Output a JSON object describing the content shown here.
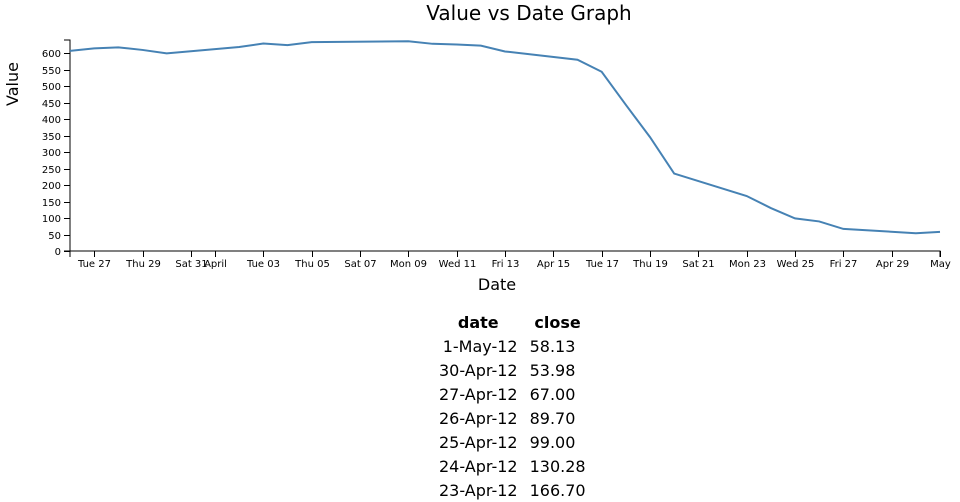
{
  "chart_data": {
    "type": "line",
    "title": "Value vs Date Graph",
    "xlabel": "Date",
    "ylabel": "Value",
    "ylim": [
      0,
      640
    ],
    "xlim": [
      "2012-03-26",
      "2012-05-01"
    ],
    "y_ticks": [
      0,
      50,
      100,
      150,
      200,
      250,
      300,
      350,
      400,
      450,
      500,
      550,
      600
    ],
    "x_ticks": [
      {
        "date": "2012-03-27",
        "label": "Tue 27"
      },
      {
        "date": "2012-03-29",
        "label": "Thu 29"
      },
      {
        "date": "2012-03-31",
        "label": "Sat 31"
      },
      {
        "date": "2012-04-01",
        "label": "April"
      },
      {
        "date": "2012-04-03",
        "label": "Tue 03"
      },
      {
        "date": "2012-04-05",
        "label": "Thu 05"
      },
      {
        "date": "2012-04-07",
        "label": "Sat 07"
      },
      {
        "date": "2012-04-09",
        "label": "Mon 09"
      },
      {
        "date": "2012-04-11",
        "label": "Wed 11"
      },
      {
        "date": "2012-04-13",
        "label": "Fri 13"
      },
      {
        "date": "2012-04-15",
        "label": "Apr 15"
      },
      {
        "date": "2012-04-17",
        "label": "Tue 17"
      },
      {
        "date": "2012-04-19",
        "label": "Thu 19"
      },
      {
        "date": "2012-04-21",
        "label": "Sat 21"
      },
      {
        "date": "2012-04-23",
        "label": "Mon 23"
      },
      {
        "date": "2012-04-25",
        "label": "Wed 25"
      },
      {
        "date": "2012-04-27",
        "label": "Fri 27"
      },
      {
        "date": "2012-04-29",
        "label": "Apr 29"
      },
      {
        "date": "2012-05-01",
        "label": "May"
      }
    ],
    "grid": false,
    "series": [
      {
        "points": [
          {
            "x": "2012-03-26",
            "y": 606.98
          },
          {
            "x": "2012-03-27",
            "y": 614.48
          },
          {
            "x": "2012-03-28",
            "y": 617.62
          },
          {
            "x": "2012-03-29",
            "y": 609.86
          },
          {
            "x": "2012-03-30",
            "y": 599.55
          },
          {
            "x": "2012-04-02",
            "y": 618.63
          },
          {
            "x": "2012-04-03",
            "y": 629.32
          },
          {
            "x": "2012-04-04",
            "y": 624.31
          },
          {
            "x": "2012-04-05",
            "y": 633.68
          },
          {
            "x": "2012-04-09",
            "y": 636.23
          },
          {
            "x": "2012-04-10",
            "y": 628.44
          },
          {
            "x": "2012-04-11",
            "y": 626.2
          },
          {
            "x": "2012-04-12",
            "y": 622.77
          },
          {
            "x": "2012-04-13",
            "y": 605.23
          },
          {
            "x": "2012-04-16",
            "y": 580.13
          },
          {
            "x": "2012-04-17",
            "y": 543.7
          },
          {
            "x": "2012-04-18",
            "y": 443.34
          },
          {
            "x": "2012-04-19",
            "y": 345.44
          },
          {
            "x": "2012-04-20",
            "y": 234.98
          },
          {
            "x": "2012-04-23",
            "y": 166.7
          },
          {
            "x": "2012-04-24",
            "y": 130.28
          },
          {
            "x": "2012-04-25",
            "y": 99.0
          },
          {
            "x": "2012-04-26",
            "y": 89.7
          },
          {
            "x": "2012-04-27",
            "y": 67.0
          },
          {
            "x": "2012-04-30",
            "y": 53.98
          },
          {
            "x": "2012-05-01",
            "y": 58.13
          }
        ]
      }
    ]
  },
  "table": {
    "headers": {
      "date": "date",
      "close": "close"
    },
    "rows": [
      {
        "date": "1-May-12",
        "close": "58.13"
      },
      {
        "date": "30-Apr-12",
        "close": "53.98"
      },
      {
        "date": "27-Apr-12",
        "close": "67.00"
      },
      {
        "date": "26-Apr-12",
        "close": "89.70"
      },
      {
        "date": "25-Apr-12",
        "close": "99.00"
      },
      {
        "date": "24-Apr-12",
        "close": "130.28"
      },
      {
        "date": "23-Apr-12",
        "close": "166.70"
      }
    ]
  }
}
